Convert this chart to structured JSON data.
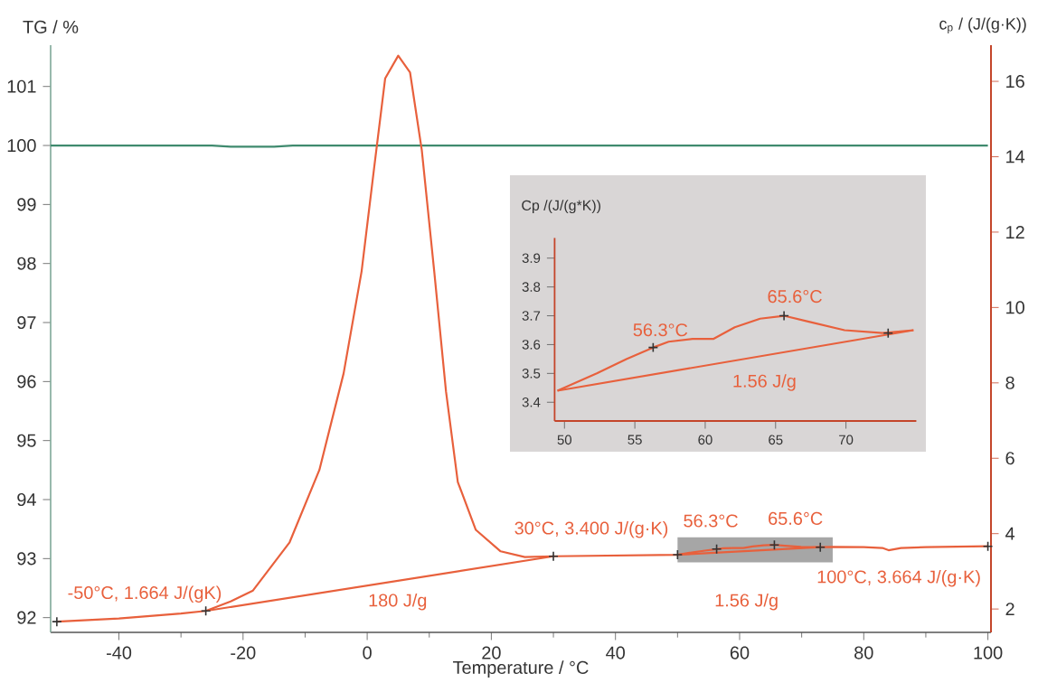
{
  "chart_data": [
    {
      "type": "line",
      "xlabel": "Temperature / °C",
      "ylabel": "TG / %",
      "y2label": "c$_{p}$ / (J/(g·K))",
      "xlim": [
        -51,
        100.5
      ],
      "xticks": [
        -40,
        -20,
        0,
        20,
        40,
        60,
        80,
        100
      ],
      "ylim": [
        91.75,
        101.7
      ],
      "yticks": [
        92,
        93,
        94,
        95,
        96,
        97,
        98,
        99,
        100,
        101
      ],
      "y2lim": [
        1.38,
        16.96
      ],
      "y2ticks": [
        2,
        4,
        6,
        8,
        10,
        12,
        14,
        16
      ],
      "series": [
        {
          "color": "#3f8a6e",
          "x": [
            -51,
            -25,
            -22,
            -15,
            -12,
            100
          ],
          "values": [
            100,
            100,
            99.98,
            99.98,
            100,
            100
          ]
        },
        {
          "color": "#e8603c",
          "axis": "y2",
          "x": [
            -50,
            -40,
            -30,
            -26,
            -22,
            -18.4,
            -12.5,
            -7.7,
            -3.8,
            -0.9,
            1.1,
            2.9,
            5,
            6.9,
            8.8,
            10.8,
            12.7,
            14.6,
            17.5,
            21.5,
            25.4,
            30,
            40,
            50,
            52.3,
            54.4,
            56.3,
            57.4,
            59.1,
            60.6,
            62.1,
            63.9,
            65.6,
            67.3,
            69.9,
            73,
            75,
            80,
            83,
            84,
            86,
            90,
            100
          ],
          "values": [
            1.664,
            1.75,
            1.88,
            1.95,
            2.2,
            2.49,
            3.77,
            5.69,
            8.25,
            10.96,
            13.68,
            16.08,
            16.68,
            16.24,
            14.17,
            10.96,
            7.77,
            5.37,
            4.1,
            3.53,
            3.38,
            3.4,
            3.42,
            3.44,
            3.5,
            3.55,
            3.59,
            3.61,
            3.62,
            3.62,
            3.66,
            3.69,
            3.7,
            3.68,
            3.65,
            3.64,
            3.65,
            3.64,
            3.62,
            3.56,
            3.62,
            3.64,
            3.664
          ]
        },
        {
          "color": "#e8603c",
          "axis": "y2",
          "x": [
            -26,
            30
          ],
          "values": [
            1.95,
            3.4
          ]
        },
        {
          "color": "#e8603c",
          "axis": "y2",
          "x": [
            50,
            73
          ],
          "values": [
            3.44,
            3.64
          ]
        },
        {
          "type": "scatter",
          "marker": "cross",
          "color": "#333333",
          "axis": "y2",
          "x": [
            -50,
            -26,
            30,
            50,
            56.3,
            65.6,
            73,
            100
          ],
          "values": [
            1.664,
            1.95,
            3.4,
            3.44,
            3.59,
            3.7,
            3.64,
            3.664
          ]
        }
      ],
      "bands": [
        {
          "axis": "x",
          "from": 50,
          "to": 75,
          "color": "#a6a6a6"
        }
      ],
      "annotations": [
        "-50°C, 1.664 J/(gK)",
        "180 J/g",
        "30°C, 3.400 J/(g·K)",
        "56.3°C",
        "65.6°C",
        "100°C, 3.664 J/(g·K)",
        "1.56 J/g"
      ]
    },
    {
      "type": "line",
      "ylabel": "Cp /(J/(g*K))",
      "xlim": [
        49.3,
        75
      ],
      "xticks": [
        50,
        55,
        60,
        65,
        70
      ],
      "ylim": [
        3.335,
        3.97
      ],
      "yticks": [
        3.4,
        3.5,
        3.6,
        3.7,
        3.8,
        3.9
      ],
      "series": [
        {
          "color": "#e8603c",
          "x": [
            49.5,
            52.3,
            54.4,
            56.3,
            57.4,
            59.1,
            60.6,
            62.1,
            63.9,
            65.6,
            67.3,
            69.9,
            72.6,
            74.8
          ],
          "values": [
            3.44,
            3.5,
            3.55,
            3.59,
            3.61,
            3.62,
            3.62,
            3.66,
            3.69,
            3.7,
            3.68,
            3.65,
            3.64,
            3.65
          ]
        },
        {
          "color": "#e8603c",
          "x": [
            49.5,
            74.8
          ],
          "values": [
            3.44,
            3.65
          ]
        },
        {
          "type": "scatter",
          "marker": "cross",
          "color": "#333333",
          "x": [
            56.3,
            65.6,
            73
          ],
          "values": [
            3.59,
            3.7,
            3.64
          ]
        }
      ],
      "annotations": [
        {
          "text": "56.3°C",
          "x": 56.3,
          "y": 3.59
        },
        {
          "text": "65.6°C",
          "x": 65.6,
          "y": 3.7
        },
        "1.56 J/g"
      ]
    }
  ]
}
